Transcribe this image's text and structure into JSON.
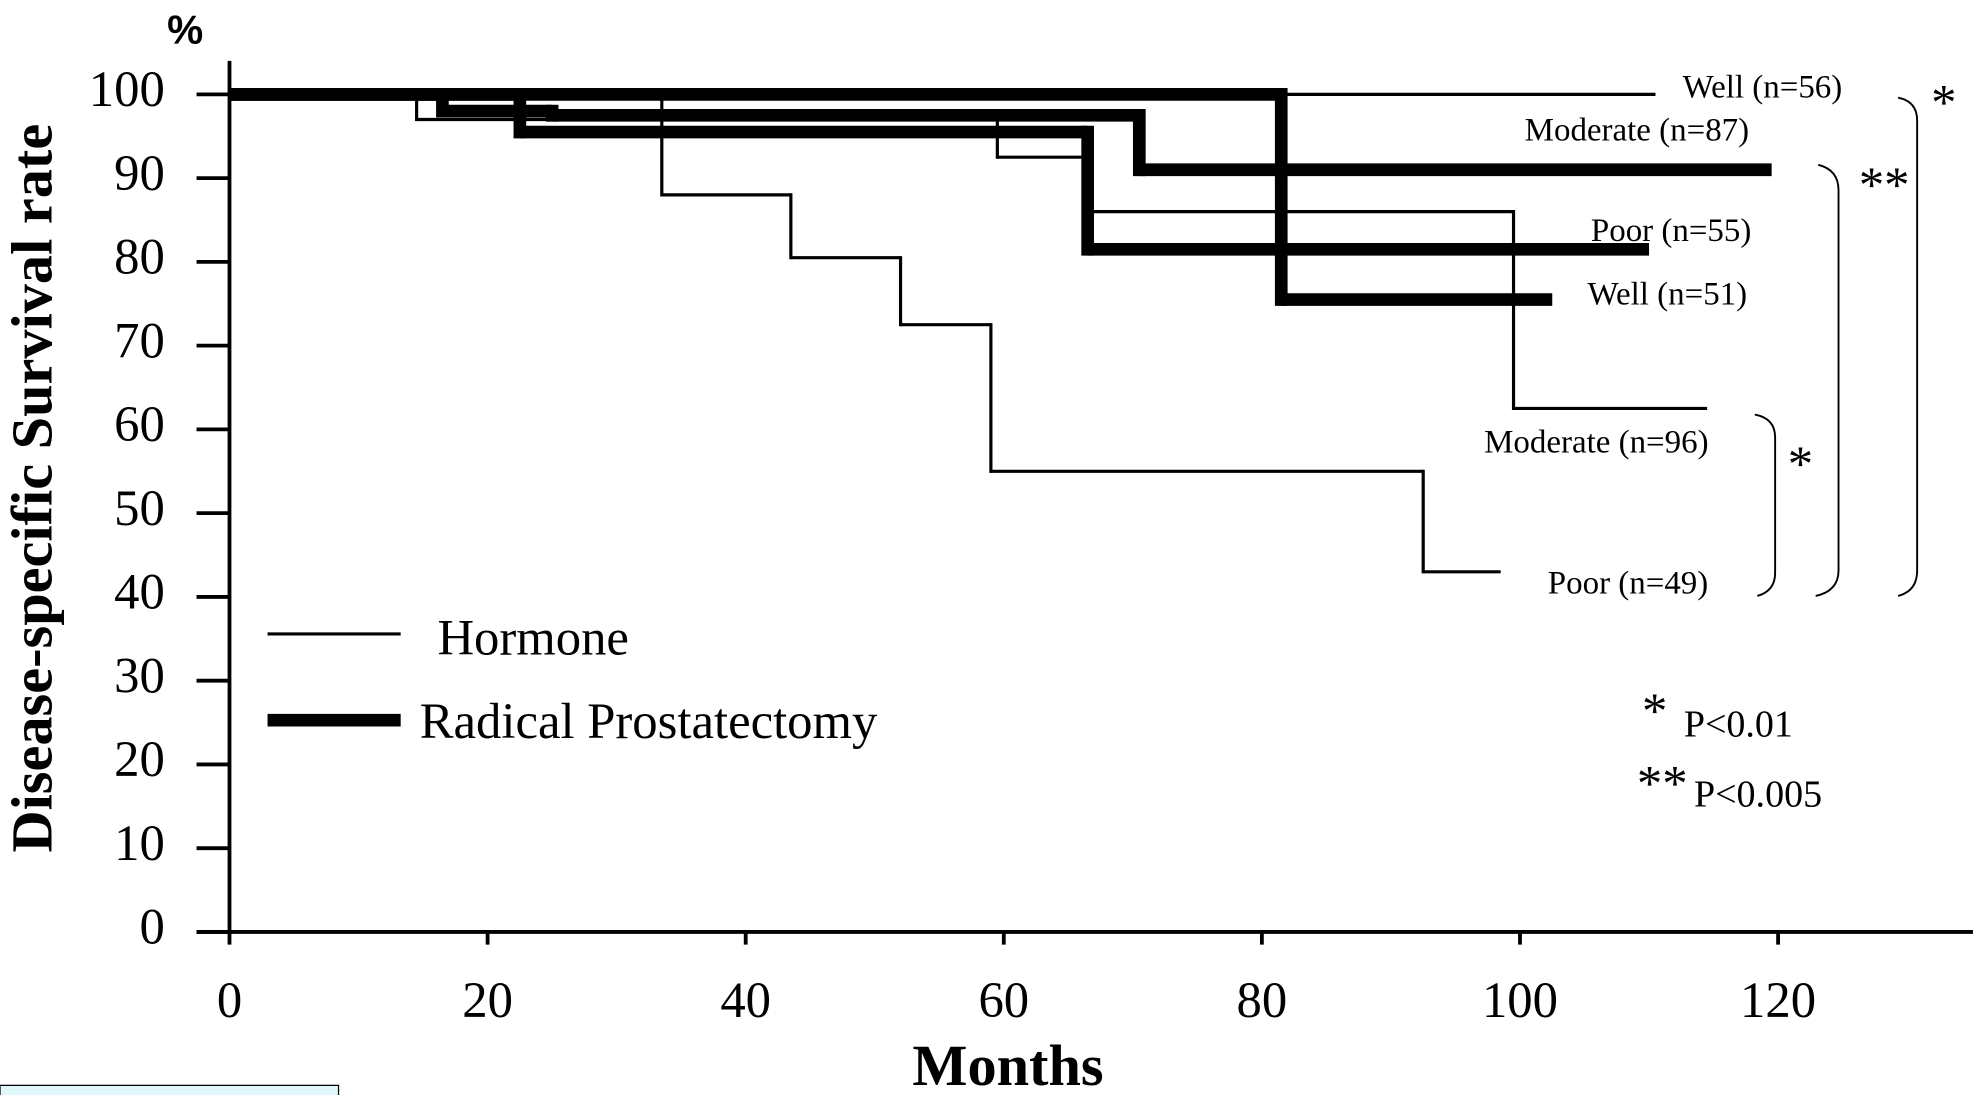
{
  "chart_data": {
    "type": "step",
    "y_unit": "%",
    "ylabel": "Disease-specific Survival rate",
    "xlabel": "Months",
    "xlim": [
      0,
      135
    ],
    "ylim": [
      0,
      104
    ],
    "xticks": [
      0,
      20,
      40,
      60,
      80,
      100,
      120
    ],
    "yticks": [
      0,
      10,
      20,
      30,
      40,
      50,
      60,
      70,
      80,
      90,
      100
    ],
    "color": "#000000",
    "groups": [
      {
        "name": "Hormone",
        "series": [
          {
            "name": "Well (n=56)",
            "x": [
              0
            ],
            "values": [
              100
            ],
            "end": 110.5
          },
          {
            "name": "Moderate (n=96)",
            "x": [
              0,
              14.5,
              59.5,
              66.5,
              99.5
            ],
            "values": [
              100,
              97,
              92.5,
              86,
              62.5
            ],
            "end": 114.5
          },
          {
            "name": "Poor (n=49)",
            "x": [
              0,
              33.5,
              43.5,
              52,
              59,
              92.5
            ],
            "values": [
              100,
              88,
              80.5,
              72.5,
              55,
              43
            ],
            "end": 98.5
          }
        ]
      },
      {
        "name": "Radical Prostatectomy",
        "series": [
          {
            "name": "Well (n=51)",
            "x": [
              0,
              81.5
            ],
            "values": [
              100,
              75.5
            ],
            "end": 102.5
          },
          {
            "name": "Moderate (n=87)",
            "x": [
              0,
              16.5,
              25,
              70.5
            ],
            "values": [
              100,
              98,
              97.5,
              91
            ],
            "end": 119.5
          },
          {
            "name": "Poor (n=55)",
            "x": [
              0,
              22.5,
              66.5
            ],
            "values": [
              100,
              95.5,
              81.5
            ],
            "end": 110
          }
        ]
      }
    ],
    "annotations": [
      "*",
      "**",
      "*"
    ],
    "notes": [
      {
        "mark": "*",
        "text": "P<0.01"
      },
      {
        "mark": "**",
        "text": "P<0.005"
      }
    ]
  }
}
